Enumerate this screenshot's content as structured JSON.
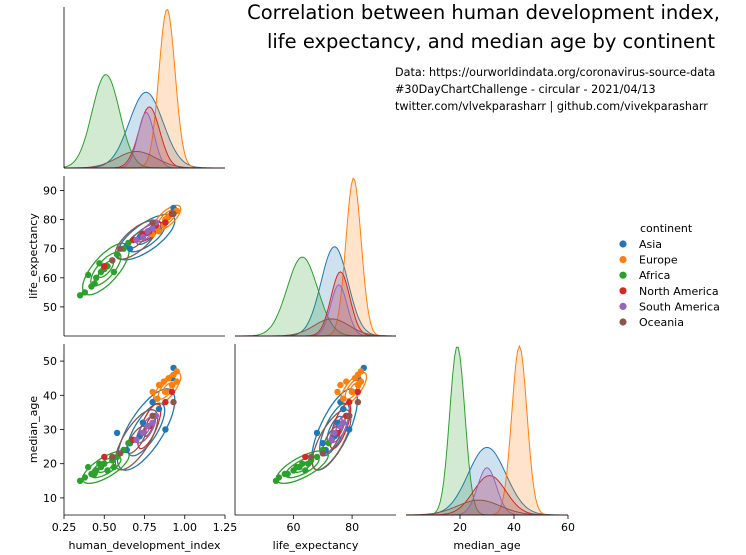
{
  "title_lines": [
    "Correlation between human development index,",
    "life expectancy, and median age by continent"
  ],
  "source_lines": [
    "Data: https://ourworldindata.org/coronavirus-source-data",
    "#30DayChartChallenge - circular - 2021/04/13",
    "twitter.com/vlvekparasharr | github.com/vivekparasharr"
  ],
  "chart_data": {
    "type": "scatter",
    "variables": [
      "human_development_index",
      "life_expectancy",
      "median_age"
    ],
    "axes": {
      "human_development_index": {
        "label": "human_development_index",
        "range": [
          0.25,
          1.25
        ],
        "ticks": [
          0.25,
          0.5,
          0.75,
          1.0,
          1.25
        ],
        "tick_labels": [
          "0.25",
          "0.50",
          "0.75",
          "1.00",
          "1.25"
        ]
      },
      "life_expectancy": {
        "label": "life_expectancy",
        "range": [
          40,
          95
        ],
        "ticks": [
          50,
          60,
          70,
          80,
          90
        ],
        "tick_labels": [
          "50",
          "60",
          "70",
          "80",
          "90"
        ],
        "x_ticks": [
          60,
          80
        ],
        "x_tick_labels": [
          "60",
          "80"
        ]
      },
      "median_age": {
        "label": "median_age",
        "range": [
          5,
          55
        ],
        "ticks": [
          10,
          20,
          30,
          40,
          50
        ],
        "tick_labels": [
          "10",
          "20",
          "30",
          "40",
          "50"
        ],
        "x_range": [
          0,
          60
        ],
        "x_ticks": [
          20,
          40,
          60
        ],
        "x_tick_labels": [
          "20",
          "40",
          "60"
        ]
      }
    },
    "legend": {
      "title": "continent",
      "placement": "right",
      "items": [
        {
          "name": "Asia",
          "color": "#1f77b4"
        },
        {
          "name": "Europe",
          "color": "#ff7f0e"
        },
        {
          "name": "Africa",
          "color": "#2ca02c"
        },
        {
          "name": "North America",
          "color": "#d62728"
        },
        {
          "name": "South America",
          "color": "#9467bd"
        },
        {
          "name": "Oceania",
          "color": "#8c564b"
        }
      ]
    },
    "groups": [
      {
        "name": "Asia",
        "color": "#1f77b4",
        "hdi": {
          "mean": 0.76,
          "sd": 0.105
        },
        "life": {
          "mean": 74,
          "sd": 4.6
        },
        "age": {
          "mean": 30,
          "sd": 7
        },
        "density_scale": 1.0,
        "points": [
          [
            0.58,
            68,
            29
          ],
          [
            0.64,
            71,
            24
          ],
          [
            0.72,
            74,
            28
          ],
          [
            0.78,
            76,
            31
          ],
          [
            0.84,
            77,
            36
          ],
          [
            0.92,
            82,
            45
          ],
          [
            0.93,
            84,
            48
          ],
          [
            0.66,
            70,
            26
          ],
          [
            0.74,
            75,
            32
          ],
          [
            0.88,
            79,
            30
          ],
          [
            0.8,
            76,
            38
          ]
        ]
      },
      {
        "name": "Europe",
        "color": "#ff7f0e",
        "hdi": {
          "mean": 0.89,
          "sd": 0.05
        },
        "life": {
          "mean": 80.5,
          "sd": 2.6
        },
        "age": {
          "mean": 42,
          "sd": 2.8
        },
        "density_scale": 1.0,
        "points": [
          [
            0.8,
            75,
            41
          ],
          [
            0.84,
            76,
            43
          ],
          [
            0.87,
            78,
            44
          ],
          [
            0.9,
            81,
            45
          ],
          [
            0.93,
            82,
            46
          ],
          [
            0.95,
            83,
            44
          ],
          [
            0.92,
            82,
            43
          ],
          [
            0.88,
            80,
            41
          ],
          [
            0.83,
            77,
            39
          ],
          [
            0.95,
            83,
            47
          ]
        ]
      },
      {
        "name": "Africa",
        "color": "#2ca02c",
        "hdi": {
          "mean": 0.51,
          "sd": 0.085
        },
        "life": {
          "mean": 63,
          "sd": 5.2
        },
        "age": {
          "mean": 19,
          "sd": 2.8
        },
        "density_scale": 1.0,
        "points": [
          [
            0.38,
            55,
            16
          ],
          [
            0.42,
            57,
            17
          ],
          [
            0.45,
            60,
            18
          ],
          [
            0.48,
            62,
            19
          ],
          [
            0.5,
            63,
            20
          ],
          [
            0.52,
            64,
            18
          ],
          [
            0.55,
            66,
            21
          ],
          [
            0.58,
            68,
            22
          ],
          [
            0.62,
            70,
            24
          ],
          [
            0.44,
            58,
            17
          ],
          [
            0.4,
            61,
            19
          ],
          [
            0.47,
            65,
            20
          ],
          [
            0.56,
            62,
            19
          ],
          [
            0.35,
            54,
            15
          ],
          [
            0.65,
            72,
            26
          ]
        ]
      },
      {
        "name": "North America",
        "color": "#d62728",
        "hdi": {
          "mean": 0.78,
          "sd": 0.065
        },
        "life": {
          "mean": 76,
          "sd": 3.2
        },
        "age": {
          "mean": 31,
          "sd": 6
        },
        "density_scale": 0.5,
        "points": [
          [
            0.5,
            64,
            22
          ],
          [
            0.68,
            73,
            27
          ],
          [
            0.74,
            75,
            29
          ],
          [
            0.78,
            76,
            31
          ],
          [
            0.82,
            78,
            34
          ],
          [
            0.88,
            79,
            38
          ],
          [
            0.92,
            82,
            41
          ]
        ]
      },
      {
        "name": "South America",
        "color": "#9467bd",
        "hdi": {
          "mean": 0.76,
          "sd": 0.05
        },
        "life": {
          "mean": 75.5,
          "sd": 2.8
        },
        "age": {
          "mean": 30,
          "sd": 3.5
        },
        "density_scale": 0.35,
        "points": [
          [
            0.7,
            73,
            27
          ],
          [
            0.74,
            74,
            29
          ],
          [
            0.77,
            76,
            31
          ],
          [
            0.8,
            77,
            32
          ],
          [
            0.82,
            79,
            34
          ]
        ]
      },
      {
        "name": "Oceania",
        "color": "#8c564b",
        "hdi": {
          "mean": 0.7,
          "sd": 0.12
        },
        "life": {
          "mean": 73,
          "sd": 6
        },
        "age": {
          "mean": 27,
          "sd": 8
        },
        "density_scale": 0.25,
        "points": [
          [
            0.55,
            66,
            22
          ],
          [
            0.8,
            79,
            34
          ],
          [
            0.93,
            82,
            38
          ],
          [
            0.6,
            70,
            23
          ]
        ]
      }
    ]
  }
}
